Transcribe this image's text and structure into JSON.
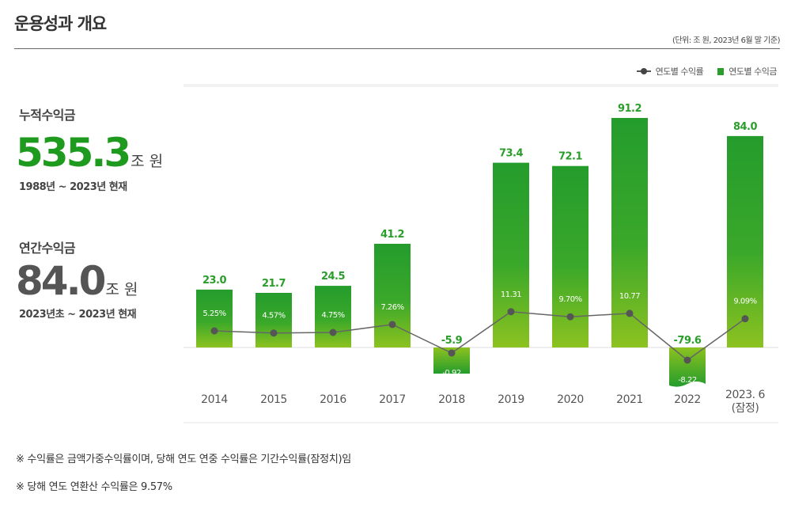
{
  "header": {
    "title": "운용성과 개요",
    "unit_note": "(단위: 조 원, 2023년 6월 말 기준)"
  },
  "kpis": {
    "cumulative": {
      "label": "누적수익금",
      "value": "535.3",
      "unit": "조 원",
      "range": "1988년 ~ 2023년 현재",
      "color": "#1e9a1e"
    },
    "annual": {
      "label": "연간수익금",
      "value": "84.0",
      "unit": "조 원",
      "range": "2023년초 ~ 2023년 현재",
      "color": "#555555"
    }
  },
  "chart_data": {
    "type": "bar",
    "categories": [
      "2014",
      "2015",
      "2016",
      "2017",
      "2018",
      "2019",
      "2020",
      "2021",
      "2022",
      "2023. 6\n(잠정)"
    ],
    "series": [
      {
        "name": "연도별 수익금",
        "type": "bar",
        "values": [
          23.0,
          21.7,
          24.5,
          41.2,
          -5.9,
          73.4,
          72.1,
          91.2,
          -79.6,
          84.0
        ],
        "labels": [
          "23.0",
          "21.7",
          "24.5",
          "41.2",
          "-5.9",
          "73.4",
          "72.1",
          "91.2",
          "-79.6",
          "84.0"
        ],
        "color": "#2a9d2a"
      },
      {
        "name": "연도별 수익률",
        "type": "line",
        "values": [
          5.25,
          4.57,
          4.75,
          7.26,
          -0.92,
          11.31,
          9.7,
          10.77,
          -8.22,
          9.09
        ],
        "labels": [
          "5.25%",
          "4.57%",
          "4.75%",
          "7.26%",
          "-0.92",
          "11.31",
          "9.70%",
          "10.77",
          "-8.22",
          "9.09%"
        ],
        "color": "#555555"
      }
    ],
    "xlabel": "",
    "ylabel": "",
    "grid": false,
    "legend": "top-right"
  },
  "notes": [
    "※ 수익률은 금액가중수익률이며, 당해 연도 연중 수익률은 기간수익률(잠정치)임",
    "※ 당해 연도 연환산 수익률은 9.57%"
  ]
}
